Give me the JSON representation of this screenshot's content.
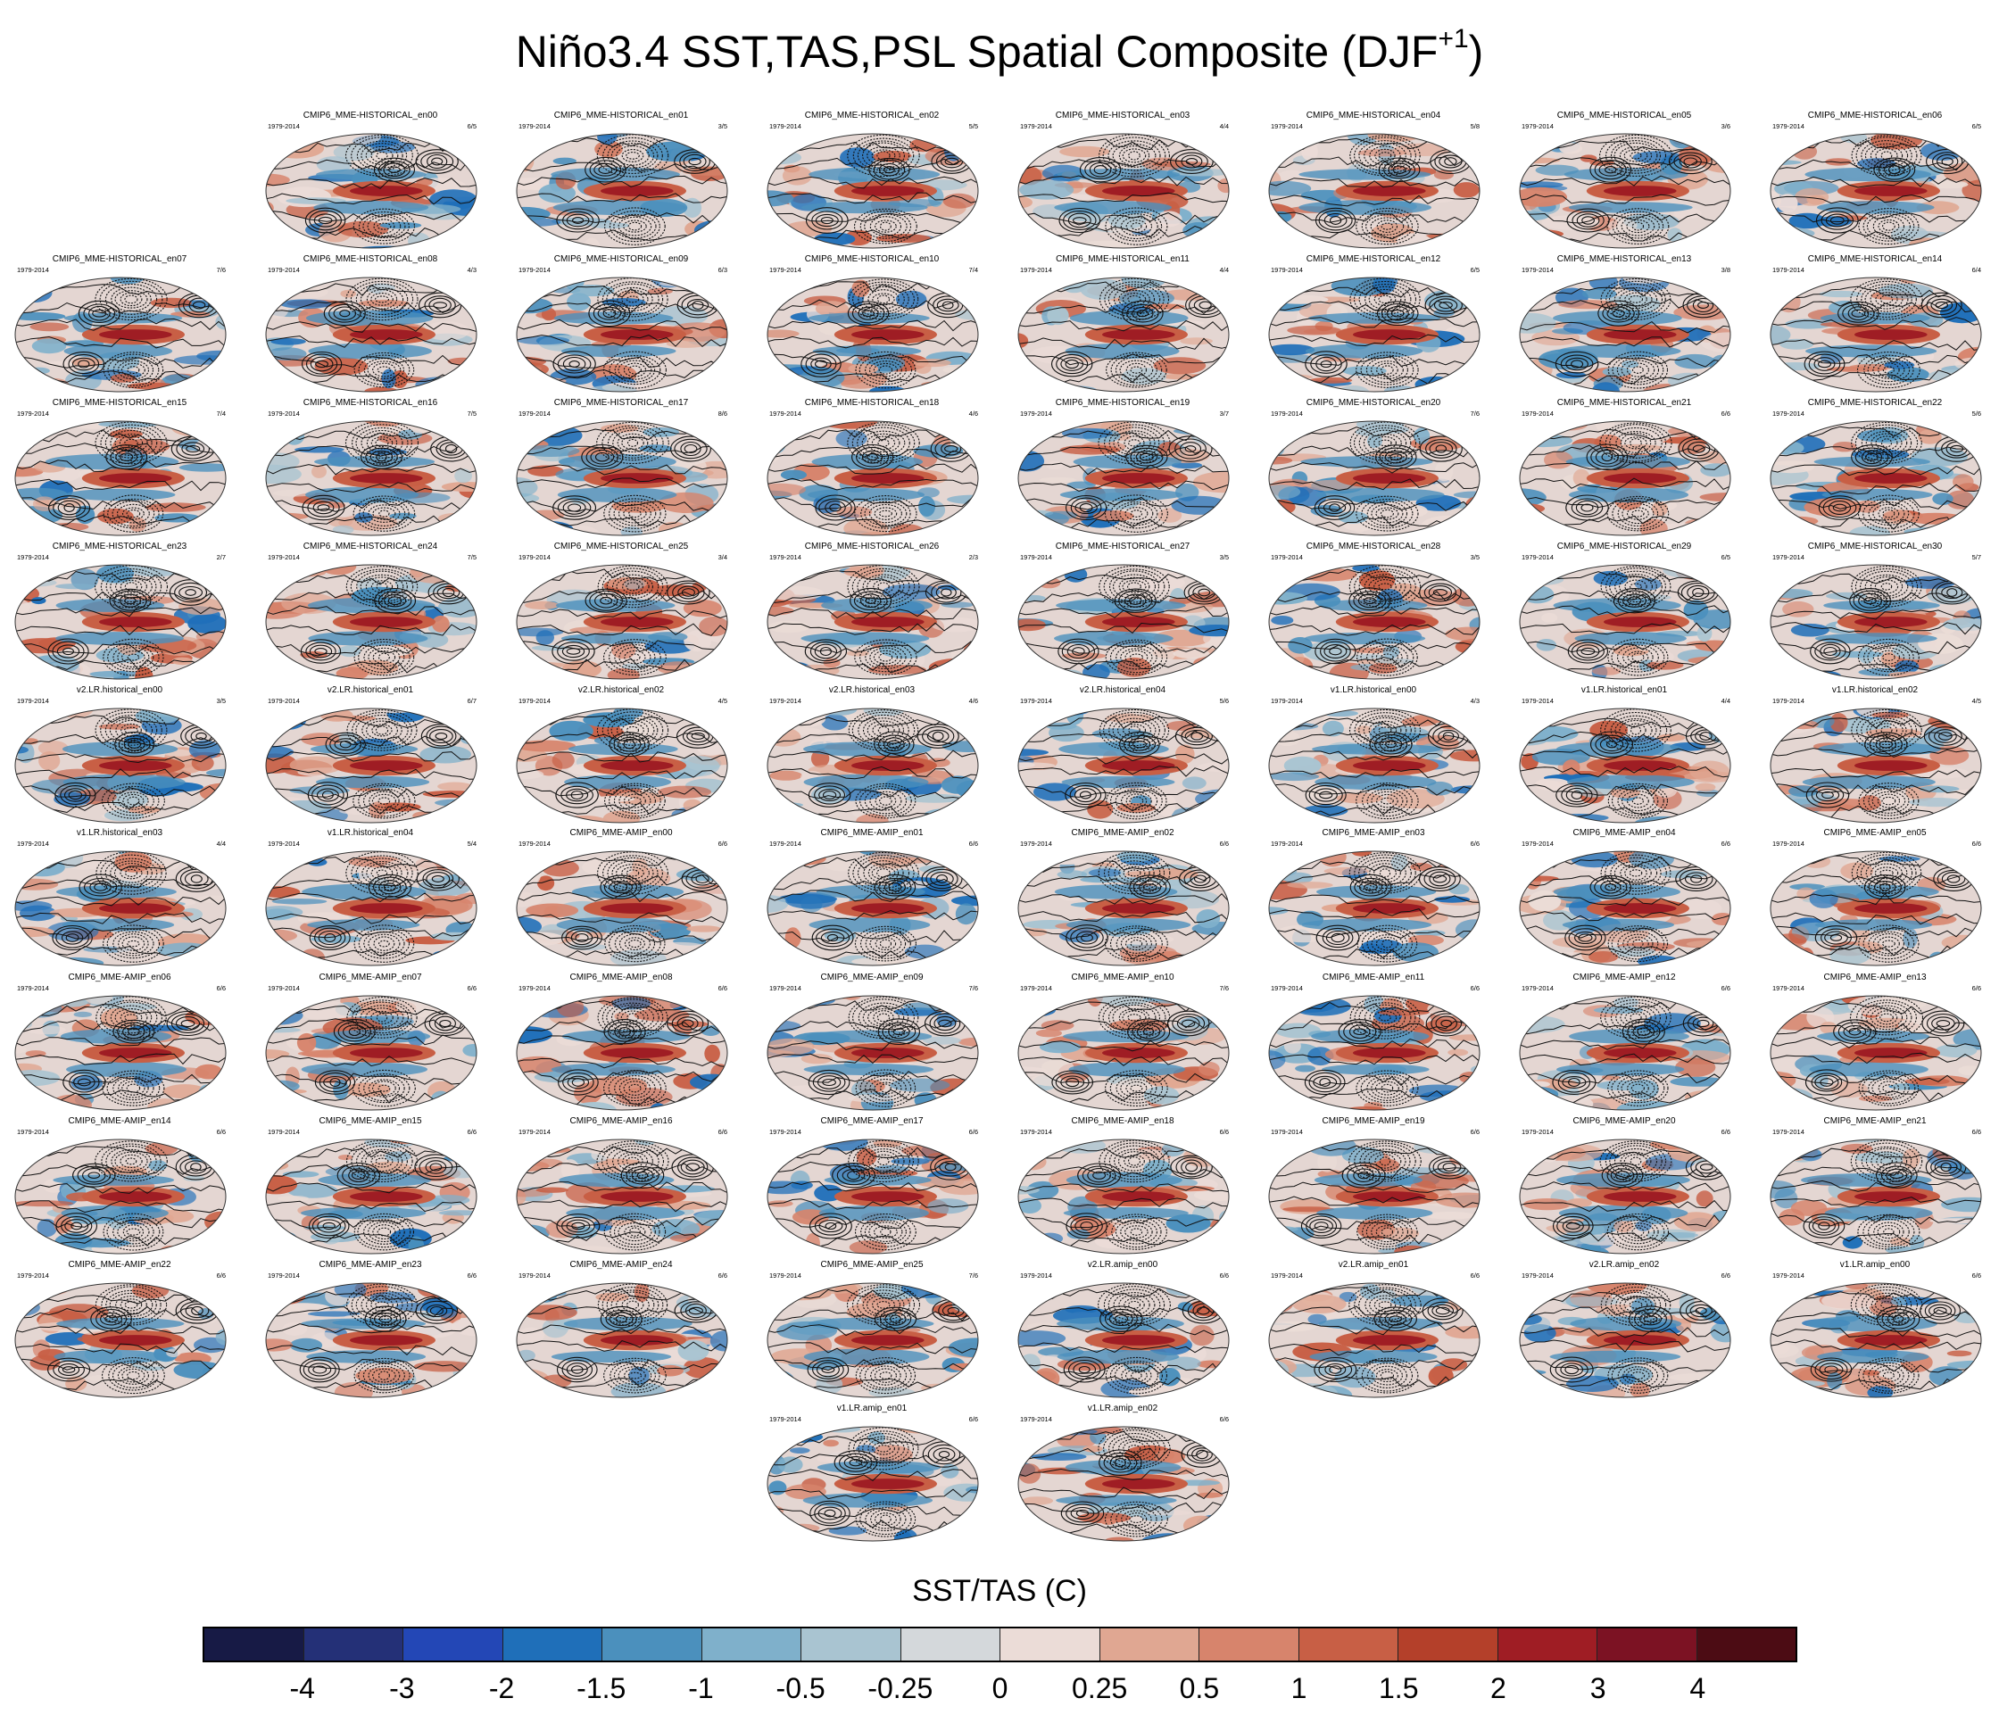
{
  "title": {
    "main": "Niño3.4 SST,TAS,PSL Spatial Composite (DJF",
    "superscript": "+1",
    "close": ")"
  },
  "colorbar": {
    "label": "SST/TAS (C)",
    "colors": [
      "#171a45",
      "#243077",
      "#2347b6",
      "#1f6fb9",
      "#4b90bd",
      "#7fb0cb",
      "#a9c4d1",
      "#d4d8db",
      "#ebdcd7",
      "#e0a792",
      "#d7846c",
      "#c85f45",
      "#b4402a",
      "#9f1d24",
      "#7c1223",
      "#4c0c14"
    ],
    "ticks": [
      "-4",
      "-3",
      "-2",
      "-1.5",
      "-1",
      "-0.5",
      "-0.25",
      "0",
      "0.25",
      "0.5",
      "1",
      "1.5",
      "2",
      "3",
      "4"
    ]
  },
  "chart_data": {
    "type": "heatmap",
    "title": "Niño3.4 SST,TAS,PSL Spatial Composite (DJF+1)",
    "colorbar_label": "SST/TAS (C)",
    "colorbar_levels": [
      -4,
      -3,
      -2,
      -1.5,
      -1,
      -0.5,
      -0.25,
      0,
      0.25,
      0.5,
      1,
      1.5,
      2,
      3,
      4
    ],
    "period": "1979-2014",
    "panels": [
      {
        "name": "CMIP6_MME-HISTORICAL_en00",
        "count": "6/5",
        "row": 0,
        "col": 1
      },
      {
        "name": "CMIP6_MME-HISTORICAL_en01",
        "count": "3/5",
        "row": 0,
        "col": 2
      },
      {
        "name": "CMIP6_MME-HISTORICAL_en02",
        "count": "5/5",
        "row": 0,
        "col": 3
      },
      {
        "name": "CMIP6_MME-HISTORICAL_en03",
        "count": "4/4",
        "row": 0,
        "col": 4
      },
      {
        "name": "CMIP6_MME-HISTORICAL_en04",
        "count": "5/8",
        "row": 0,
        "col": 5
      },
      {
        "name": "CMIP6_MME-HISTORICAL_en05",
        "count": "3/6",
        "row": 0,
        "col": 6
      },
      {
        "name": "CMIP6_MME-HISTORICAL_en06",
        "count": "6/5",
        "row": 0,
        "col": 7
      },
      {
        "name": "CMIP6_MME-HISTORICAL_en07",
        "count": "7/6",
        "row": 1,
        "col": 0
      },
      {
        "name": "CMIP6_MME-HISTORICAL_en08",
        "count": "4/3",
        "row": 1,
        "col": 1
      },
      {
        "name": "CMIP6_MME-HISTORICAL_en09",
        "count": "6/3",
        "row": 1,
        "col": 2
      },
      {
        "name": "CMIP6_MME-HISTORICAL_en10",
        "count": "7/4",
        "row": 1,
        "col": 3
      },
      {
        "name": "CMIP6_MME-HISTORICAL_en11",
        "count": "4/4",
        "row": 1,
        "col": 4
      },
      {
        "name": "CMIP6_MME-HISTORICAL_en12",
        "count": "6/5",
        "row": 1,
        "col": 5
      },
      {
        "name": "CMIP6_MME-HISTORICAL_en13",
        "count": "3/8",
        "row": 1,
        "col": 6
      },
      {
        "name": "CMIP6_MME-HISTORICAL_en14",
        "count": "6/4",
        "row": 1,
        "col": 7
      },
      {
        "name": "CMIP6_MME-HISTORICAL_en15",
        "count": "7/4",
        "row": 2,
        "col": 0
      },
      {
        "name": "CMIP6_MME-HISTORICAL_en16",
        "count": "7/5",
        "row": 2,
        "col": 1
      },
      {
        "name": "CMIP6_MME-HISTORICAL_en17",
        "count": "8/6",
        "row": 2,
        "col": 2
      },
      {
        "name": "CMIP6_MME-HISTORICAL_en18",
        "count": "4/6",
        "row": 2,
        "col": 3
      },
      {
        "name": "CMIP6_MME-HISTORICAL_en19",
        "count": "3/7",
        "row": 2,
        "col": 4
      },
      {
        "name": "CMIP6_MME-HISTORICAL_en20",
        "count": "7/6",
        "row": 2,
        "col": 5
      },
      {
        "name": "CMIP6_MME-HISTORICAL_en21",
        "count": "6/6",
        "row": 2,
        "col": 6
      },
      {
        "name": "CMIP6_MME-HISTORICAL_en22",
        "count": "5/6",
        "row": 2,
        "col": 7
      },
      {
        "name": "CMIP6_MME-HISTORICAL_en23",
        "count": "2/7",
        "row": 3,
        "col": 0
      },
      {
        "name": "CMIP6_MME-HISTORICAL_en24",
        "count": "7/5",
        "row": 3,
        "col": 1
      },
      {
        "name": "CMIP6_MME-HISTORICAL_en25",
        "count": "3/4",
        "row": 3,
        "col": 2
      },
      {
        "name": "CMIP6_MME-HISTORICAL_en26",
        "count": "2/3",
        "row": 3,
        "col": 3
      },
      {
        "name": "CMIP6_MME-HISTORICAL_en27",
        "count": "3/5",
        "row": 3,
        "col": 4
      },
      {
        "name": "CMIP6_MME-HISTORICAL_en28",
        "count": "3/5",
        "row": 3,
        "col": 5
      },
      {
        "name": "CMIP6_MME-HISTORICAL_en29",
        "count": "6/5",
        "row": 3,
        "col": 6
      },
      {
        "name": "CMIP6_MME-HISTORICAL_en30",
        "count": "5/7",
        "row": 3,
        "col": 7
      },
      {
        "name": "v2.LR.historical_en00",
        "count": "3/5",
        "row": 4,
        "col": 0
      },
      {
        "name": "v2.LR.historical_en01",
        "count": "6/7",
        "row": 4,
        "col": 1
      },
      {
        "name": "v2.LR.historical_en02",
        "count": "4/5",
        "row": 4,
        "col": 2
      },
      {
        "name": "v2.LR.historical_en03",
        "count": "4/6",
        "row": 4,
        "col": 3
      },
      {
        "name": "v2.LR.historical_en04",
        "count": "5/6",
        "row": 4,
        "col": 4
      },
      {
        "name": "v1.LR.historical_en00",
        "count": "4/3",
        "row": 4,
        "col": 5
      },
      {
        "name": "v1.LR.historical_en01",
        "count": "4/4",
        "row": 4,
        "col": 6
      },
      {
        "name": "v1.LR.historical_en02",
        "count": "4/5",
        "row": 4,
        "col": 7
      },
      {
        "name": "v1.LR.historical_en03",
        "count": "4/4",
        "row": 5,
        "col": 0
      },
      {
        "name": "v1.LR.historical_en04",
        "count": "5/4",
        "row": 5,
        "col": 1
      },
      {
        "name": "CMIP6_MME-AMIP_en00",
        "count": "6/6",
        "row": 5,
        "col": 2
      },
      {
        "name": "CMIP6_MME-AMIP_en01",
        "count": "6/6",
        "row": 5,
        "col": 3
      },
      {
        "name": "CMIP6_MME-AMIP_en02",
        "count": "6/6",
        "row": 5,
        "col": 4
      },
      {
        "name": "CMIP6_MME-AMIP_en03",
        "count": "6/6",
        "row": 5,
        "col": 5
      },
      {
        "name": "CMIP6_MME-AMIP_en04",
        "count": "6/6",
        "row": 5,
        "col": 6
      },
      {
        "name": "CMIP6_MME-AMIP_en05",
        "count": "6/6",
        "row": 5,
        "col": 7
      },
      {
        "name": "CMIP6_MME-AMIP_en06",
        "count": "6/6",
        "row": 6,
        "col": 0
      },
      {
        "name": "CMIP6_MME-AMIP_en07",
        "count": "6/6",
        "row": 6,
        "col": 1
      },
      {
        "name": "CMIP6_MME-AMIP_en08",
        "count": "6/6",
        "row": 6,
        "col": 2
      },
      {
        "name": "CMIP6_MME-AMIP_en09",
        "count": "7/6",
        "row": 6,
        "col": 3
      },
      {
        "name": "CMIP6_MME-AMIP_en10",
        "count": "7/6",
        "row": 6,
        "col": 4
      },
      {
        "name": "CMIP6_MME-AMIP_en11",
        "count": "6/6",
        "row": 6,
        "col": 5
      },
      {
        "name": "CMIP6_MME-AMIP_en12",
        "count": "6/6",
        "row": 6,
        "col": 6
      },
      {
        "name": "CMIP6_MME-AMIP_en13",
        "count": "6/6",
        "row": 6,
        "col": 7
      },
      {
        "name": "CMIP6_MME-AMIP_en14",
        "count": "6/6",
        "row": 7,
        "col": 0
      },
      {
        "name": "CMIP6_MME-AMIP_en15",
        "count": "6/6",
        "row": 7,
        "col": 1
      },
      {
        "name": "CMIP6_MME-AMIP_en16",
        "count": "6/6",
        "row": 7,
        "col": 2
      },
      {
        "name": "CMIP6_MME-AMIP_en17",
        "count": "6/6",
        "row": 7,
        "col": 3
      },
      {
        "name": "CMIP6_MME-AMIP_en18",
        "count": "6/6",
        "row": 7,
        "col": 4
      },
      {
        "name": "CMIP6_MME-AMIP_en19",
        "count": "6/6",
        "row": 7,
        "col": 5
      },
      {
        "name": "CMIP6_MME-AMIP_en20",
        "count": "6/6",
        "row": 7,
        "col": 6
      },
      {
        "name": "CMIP6_MME-AMIP_en21",
        "count": "6/6",
        "row": 7,
        "col": 7
      },
      {
        "name": "CMIP6_MME-AMIP_en22",
        "count": "6/6",
        "row": 8,
        "col": 0
      },
      {
        "name": "CMIP6_MME-AMIP_en23",
        "count": "6/6",
        "row": 8,
        "col": 1
      },
      {
        "name": "CMIP6_MME-AMIP_en24",
        "count": "6/6",
        "row": 8,
        "col": 2
      },
      {
        "name": "CMIP6_MME-AMIP_en25",
        "count": "7/6",
        "row": 8,
        "col": 3
      },
      {
        "name": "v2.LR.amip_en00",
        "count": "6/6",
        "row": 8,
        "col": 4
      },
      {
        "name": "v2.LR.amip_en01",
        "count": "6/6",
        "row": 8,
        "col": 5
      },
      {
        "name": "v2.LR.amip_en02",
        "count": "6/6",
        "row": 8,
        "col": 6
      },
      {
        "name": "v1.LR.amip_en00",
        "count": "6/6",
        "row": 8,
        "col": 7
      },
      {
        "name": "v1.LR.amip_en01",
        "count": "6/6",
        "row": 9,
        "col": 3
      },
      {
        "name": "v1.LR.amip_en02",
        "count": "6/6",
        "row": 9,
        "col": 4
      }
    ]
  }
}
